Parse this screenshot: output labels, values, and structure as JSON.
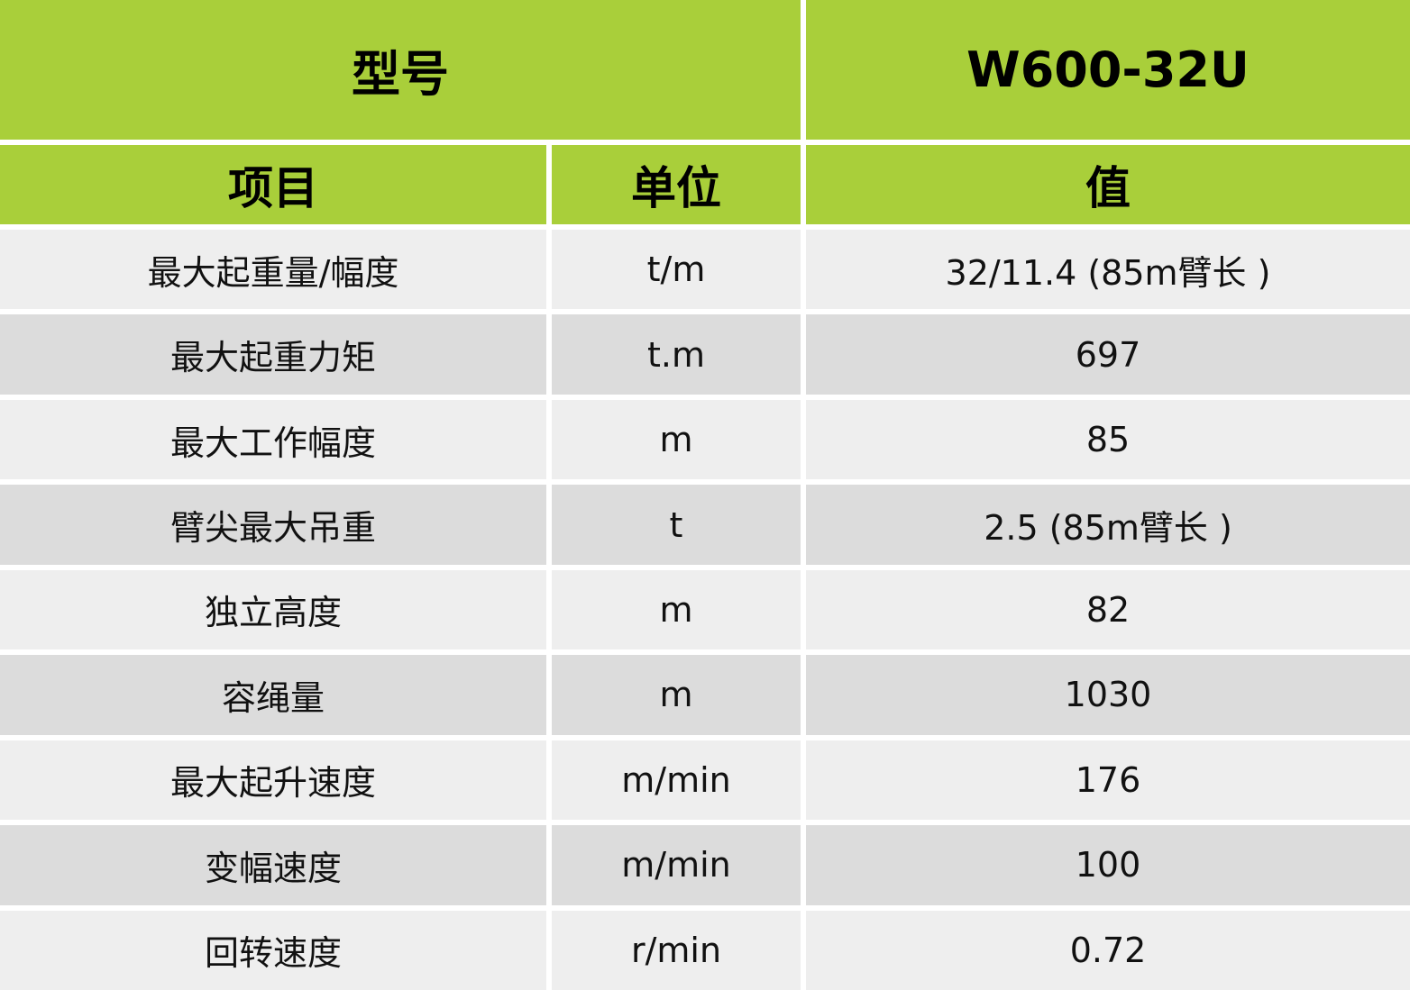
{
  "header": {
    "model_label": "型号",
    "model_value": "W600-32U"
  },
  "columns": [
    "项目",
    "单位",
    "值"
  ],
  "rows": [
    {
      "item": "最大起重量/幅度",
      "unit": "t/m",
      "value": "32/11.4 (85m臂长 )"
    },
    {
      "item": "最大起重力矩",
      "unit": "t.m",
      "value": "697"
    },
    {
      "item": "最大工作幅度",
      "unit": "m",
      "value": "85"
    },
    {
      "item": "臂尖最大吊重",
      "unit": "t",
      "value": "2.5 (85m臂长 )"
    },
    {
      "item": "独立高度",
      "unit": "m",
      "value": "82"
    },
    {
      "item": "容绳量",
      "unit": "m",
      "value": "1030"
    },
    {
      "item": "最大起升速度",
      "unit": "m/min",
      "value": "176"
    },
    {
      "item": "变幅速度",
      "unit": "m/min",
      "value": "100"
    },
    {
      "item": "回转速度",
      "unit": "r/min",
      "value": "0.72"
    }
  ],
  "colors": {
    "header_green": "#a9cf3a",
    "row_light": "#eeeeee",
    "row_dark": "#dcdcdc"
  }
}
